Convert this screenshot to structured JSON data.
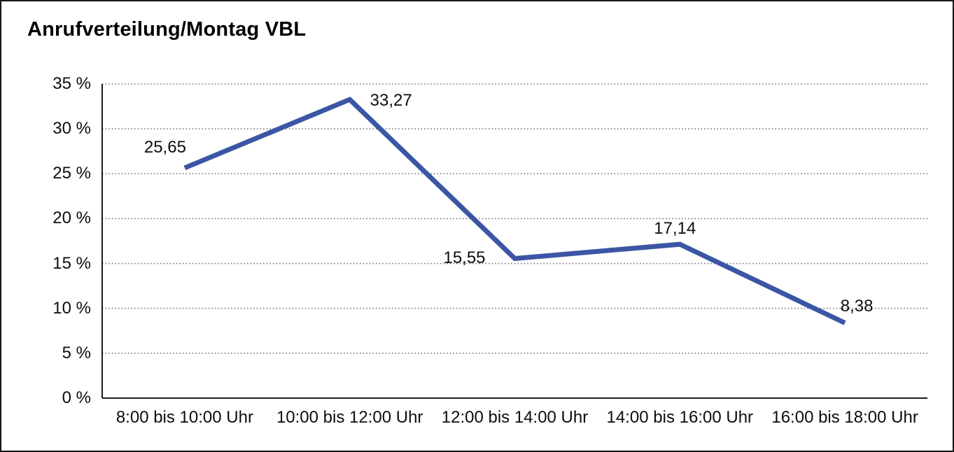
{
  "window": {
    "background": "#ffffff",
    "frame_border_color": "#161616"
  },
  "colors": {
    "series_line": "#3A56A4",
    "axis_line": "#1c1c1c",
    "gridline": "#777777",
    "text": "#0d0d0d"
  },
  "chart_data": {
    "type": "line",
    "title": "Anrufverteilung/Montag VBL",
    "categories": [
      "8:00 bis 10:00 Uhr",
      "10:00 bis 12:00 Uhr",
      "12:00 bis 14:00 Uhr",
      "14:00 bis 16:00 Uhr",
      "16:00 bis 18:00 Uhr"
    ],
    "series": [
      {
        "values": [
          25.65,
          33.27,
          15.55,
          17.14,
          8.38
        ],
        "value_labels": [
          "25,65",
          "33,27",
          "15,55",
          "17,14",
          "8,38"
        ],
        "color": "#3A56A4"
      }
    ],
    "xlabel": "",
    "ylabel": "",
    "ylim": [
      0,
      35
    ],
    "y_ticks": [
      {
        "value": 0,
        "label": "0 %"
      },
      {
        "value": 5,
        "label": "5 %"
      },
      {
        "value": 10,
        "label": "10 %"
      },
      {
        "value": 15,
        "label": "15 %"
      },
      {
        "value": 20,
        "label": "20 %"
      },
      {
        "value": 25,
        "label": "25 %"
      },
      {
        "value": 30,
        "label": "30 %"
      },
      {
        "value": 35,
        "label": "35 %"
      }
    ],
    "grid": "horizontal-dotted",
    "legend_position": "none",
    "decimal_separator": ","
  }
}
